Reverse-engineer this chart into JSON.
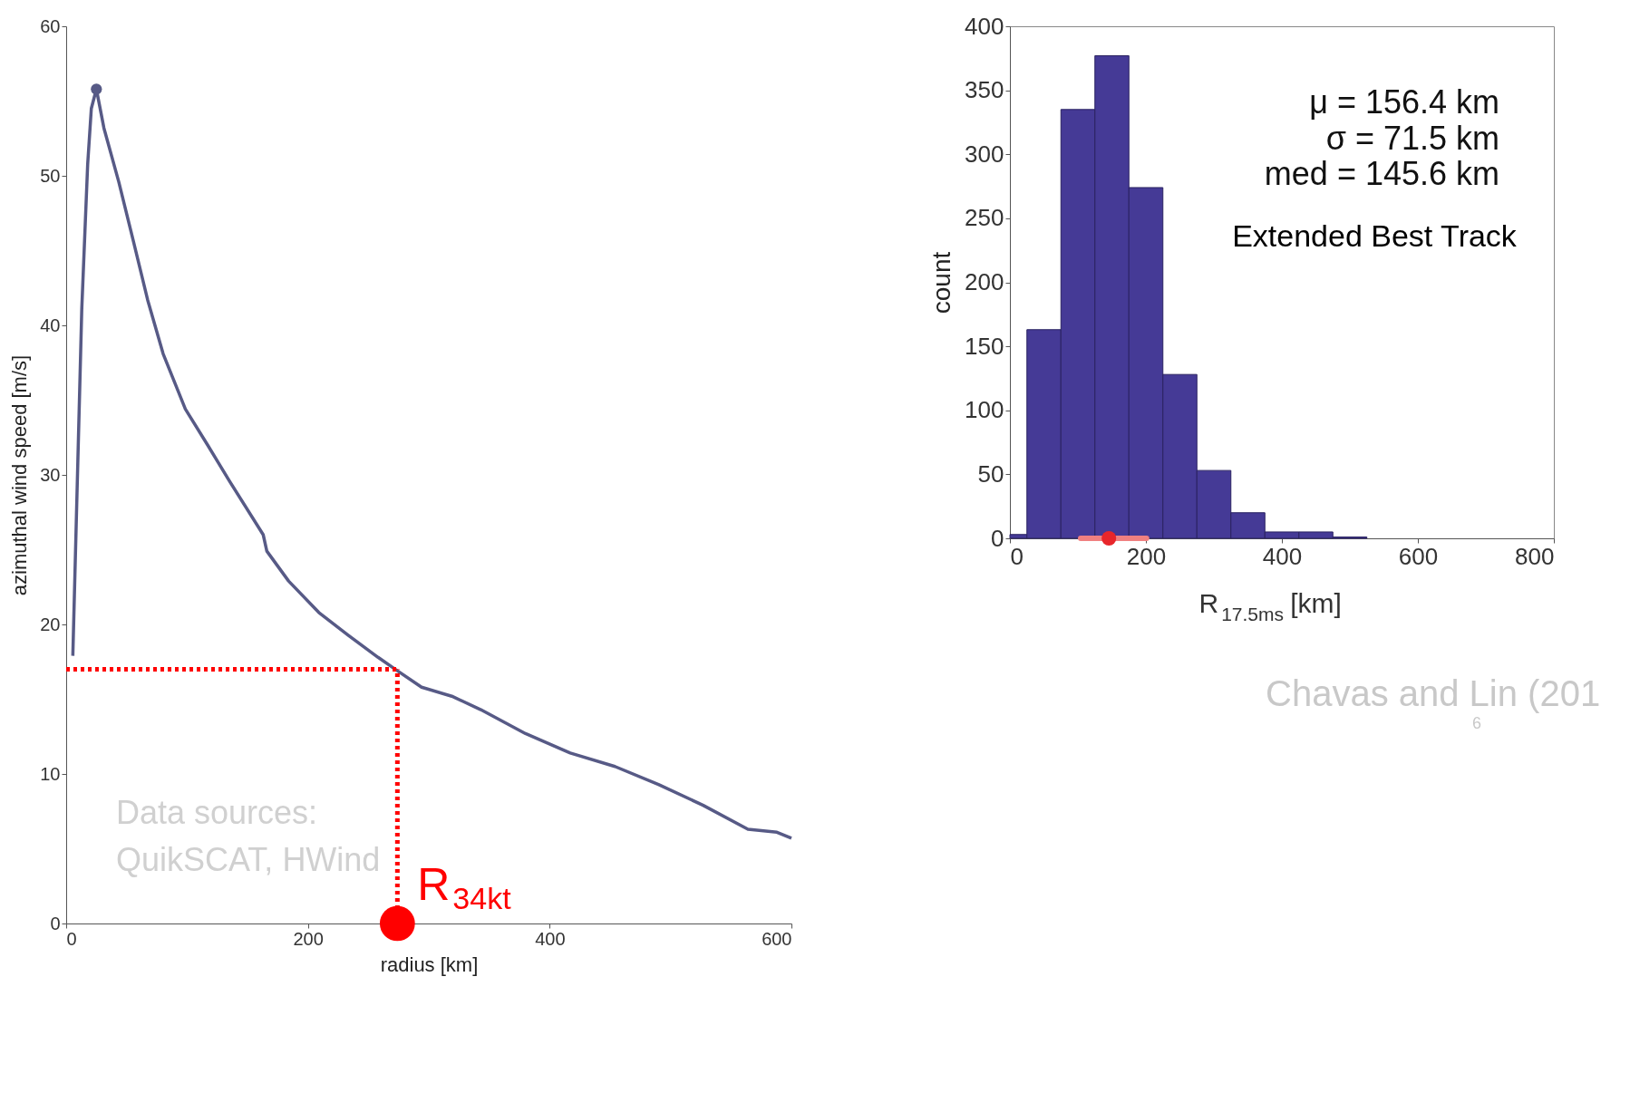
{
  "chart_data": [
    {
      "type": "line",
      "xlabel": "radius [km]",
      "ylabel": "azimuthal wind speed [m/s]",
      "xlim": [
        0,
        600
      ],
      "xticks": [
        0,
        200,
        400,
        600
      ],
      "ylim": [
        0,
        60
      ],
      "yticks": [
        0,
        10,
        20,
        30,
        40,
        50,
        60
      ],
      "grid": false,
      "line_style": "solid",
      "series": [
        {
          "color": "#575a86",
          "x": [
            5.5,
            12.9,
            17.8,
            20.8,
            25,
            31.2,
            43.5,
            55.7,
            67.4,
            80.2,
            98.6,
            117,
            135,
            163,
            166,
            184,
            209,
            233,
            258,
            274,
            294,
            319,
            343,
            380,
            417,
            454,
            490,
            527,
            564,
            588,
            600
          ],
          "values": [
            17.9,
            41.1,
            50.8,
            54.5,
            55.8,
            53.2,
            49.6,
            45.6,
            41.7,
            38.1,
            34.4,
            32.0,
            29.6,
            26.0,
            24.9,
            22.9,
            20.8,
            19.3,
            17.8,
            16.9,
            15.8,
            15.2,
            14.3,
            12.7,
            11.4,
            10.5,
            9.3,
            7.9,
            6.3,
            6.1,
            5.7
          ]
        },
        {
          "type": "scatter",
          "color": "#575a86",
          "x": [
            25
          ],
          "values": [
            55.8
          ]
        },
        {
          "type": "scatter",
          "color": "#ff0000",
          "x": [
            274
          ],
          "values": [
            0
          ]
        }
      ],
      "ref_lines": [
        {
          "axis": "y",
          "value": 17,
          "color": "#ff0000",
          "line_style": "dotted"
        },
        {
          "axis": "x",
          "value": 274,
          "color": "#ff0000",
          "line_style": "dotted"
        }
      ],
      "annotations": [
        "Data sources:",
        "QuikSCAT, HWind",
        {
          "text": "R$_{34kt}$",
          "x": 274,
          "y": 0
        }
      ]
    },
    {
      "type": "histogram",
      "xlabel": "R$_{17.5ms}$ [km]",
      "ylabel": "count",
      "color": "#453a96",
      "bins": [
        0,
        25,
        75,
        125,
        175,
        225,
        275,
        325,
        375,
        425,
        475,
        525
      ],
      "values": [
        3,
        163,
        335,
        377,
        274,
        128,
        53,
        20,
        5,
        5,
        1
      ],
      "xlim": [
        0,
        800
      ],
      "xticks": [
        0,
        200,
        400,
        600,
        800
      ],
      "ylim": [
        0,
        400
      ],
      "yticks": [
        0,
        50,
        100,
        150,
        200,
        250,
        300,
        350,
        400
      ],
      "grid": false,
      "series": [
        {
          "type": "scatter",
          "color": "#e8262b",
          "x": [
            145.6
          ],
          "values": [
            0
          ],
          "xerrors": [
            [
              104,
              201
            ]
          ]
        }
      ],
      "annotations": [
        "μ = 156.4 km",
        "σ = 71.5 km",
        "med = 145.6 km",
        "Extended Best Track",
        "Chavas and Lin (201",
        "6"
      ]
    }
  ]
}
